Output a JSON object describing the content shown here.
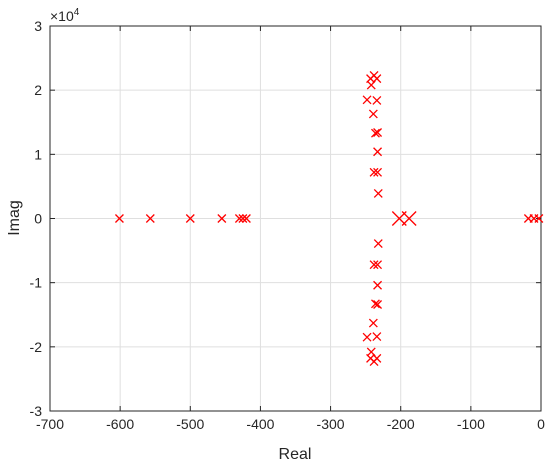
{
  "chart_data": {
    "type": "scatter",
    "title": "",
    "xlabel": "Real",
    "ylabel": "Imag",
    "xlim": [
      -700,
      0
    ],
    "ylim": [
      -30000,
      30000
    ],
    "x_ticks": [
      -700,
      -600,
      -500,
      -400,
      -300,
      -200,
      -100,
      0
    ],
    "x_tick_labels": [
      "-700",
      "-600",
      "-500",
      "-400",
      "-300",
      "-200",
      "-100",
      "0"
    ],
    "y_ticks": [
      -30000,
      -20000,
      -10000,
      0,
      10000,
      20000,
      30000
    ],
    "y_tick_labels": [
      "-3",
      "-2",
      "-1",
      "0",
      "1",
      "2",
      "3"
    ],
    "y_exponent_base": "×10",
    "y_exponent_power": "4",
    "grid": true,
    "marker": "x",
    "marker_color": "#ff0000",
    "series": [
      {
        "points": [
          [
            -601,
            0
          ],
          [
            -557,
            0
          ],
          [
            -500,
            0
          ],
          [
            -455,
            0
          ],
          [
            -430,
            0
          ],
          [
            -425,
            0
          ],
          [
            -420,
            0
          ],
          [
            -202,
            0
          ],
          [
            -188,
            0
          ],
          [
            -18,
            0
          ],
          [
            -10,
            0
          ],
          [
            -3,
            0
          ],
          [
            -248,
            18500
          ],
          [
            -248,
            -18500
          ],
          [
            -243,
            21800
          ],
          [
            -243,
            -21800
          ],
          [
            -242,
            20800
          ],
          [
            -242,
            -20800
          ],
          [
            -239,
            16300
          ],
          [
            -239,
            -16300
          ],
          [
            -238,
            22300
          ],
          [
            -238,
            -22300
          ],
          [
            -238,
            7200
          ],
          [
            -238,
            -7200
          ],
          [
            -236,
            13300
          ],
          [
            -236,
            -13300
          ],
          [
            -234,
            18400
          ],
          [
            -234,
            -18400
          ],
          [
            -234,
            21800
          ],
          [
            -234,
            -21800
          ],
          [
            -233,
            13400
          ],
          [
            -233,
            -13400
          ],
          [
            -233,
            10400
          ],
          [
            -233,
            -10400
          ],
          [
            -233,
            7200
          ],
          [
            -233,
            -7200
          ],
          [
            -232,
            3900
          ],
          [
            -232,
            -3900
          ]
        ],
        "sizes": [
          8,
          8,
          8,
          8,
          8,
          8,
          8,
          14,
          14,
          8,
          8,
          8,
          8,
          8,
          8,
          8,
          8,
          8,
          8,
          8,
          8,
          8,
          8,
          8,
          8,
          8,
          8,
          8,
          8,
          8,
          8,
          8,
          8,
          8,
          8,
          8,
          8,
          8
        ]
      }
    ]
  }
}
